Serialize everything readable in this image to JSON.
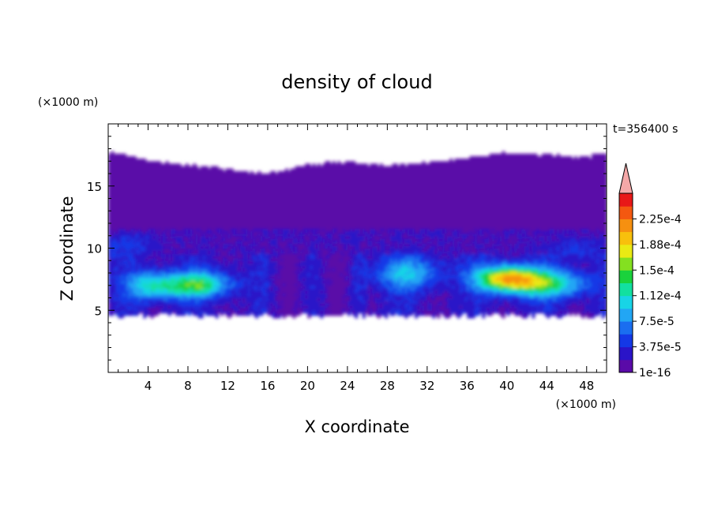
{
  "chart_data": {
    "type": "heatmap",
    "title": "density of cloud",
    "xlabel": "X coordinate",
    "ylabel": "Z coordinate",
    "x_unit": "(×1000 m)",
    "y_unit": "(×1000 m)",
    "time_label": "t=356400 s",
    "xlim": [
      0,
      50
    ],
    "ylim": [
      0,
      20
    ],
    "x_ticks": [
      4,
      8,
      12,
      16,
      20,
      24,
      28,
      32,
      36,
      40,
      44,
      48
    ],
    "y_ticks": [
      5,
      10,
      15
    ],
    "colorbar": {
      "labels": [
        "1e-16",
        "3.75e-5",
        "7.5e-5",
        "1.12e-4",
        "1.5e-4",
        "1.88e-4",
        "2.25e-4"
      ],
      "colors": [
        "#5a0aa8",
        "#2a14c8",
        "#1438e6",
        "#1a6ef0",
        "#22a6f4",
        "#18d4e6",
        "#12e0a0",
        "#1ad23c",
        "#84e020",
        "#eaea14",
        "#f8c00c",
        "#f69010",
        "#f45810",
        "#e81818"
      ],
      "extend_max_color": "#f4a8a8"
    },
    "cloud": {
      "top_profile_km": [
        [
          0,
          17.6
        ],
        [
          2,
          17.3
        ],
        [
          5,
          16.8
        ],
        [
          8,
          16.6
        ],
        [
          12,
          16.2
        ],
        [
          16,
          15.9
        ],
        [
          20,
          16.6
        ],
        [
          24,
          16.8
        ],
        [
          28,
          16.5
        ],
        [
          32,
          16.8
        ],
        [
          36,
          17.1
        ],
        [
          40,
          17.6
        ],
        [
          44,
          17.4
        ],
        [
          48,
          17.2
        ],
        [
          50,
          17.6
        ]
      ],
      "base_km": 4.6,
      "dense_layer_km": [
        5.5,
        9.5
      ],
      "maxima": [
        {
          "x_km": 9,
          "z_km": 7.2,
          "level": 6
        },
        {
          "x_km": 30,
          "z_km": 8.2,
          "level": 4
        },
        {
          "x_km": 40,
          "z_km": 7.8,
          "level": 9
        }
      ]
    }
  }
}
